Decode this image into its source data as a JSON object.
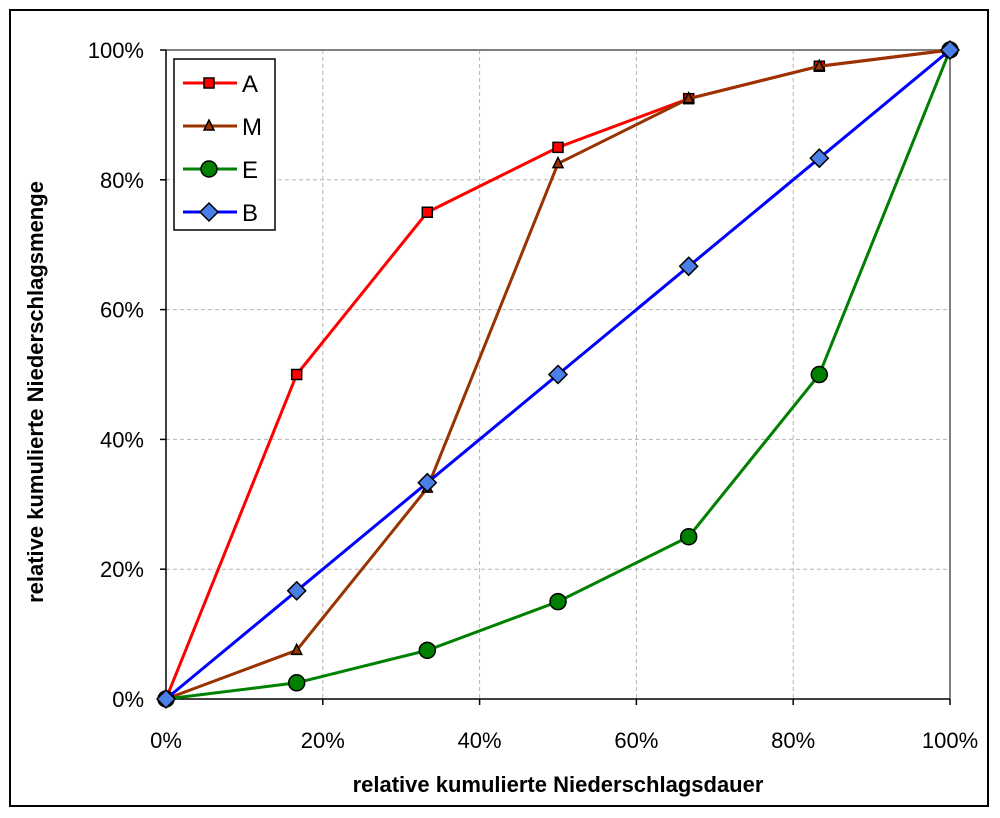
{
  "chart_data": {
    "type": "line",
    "title": "",
    "xlabel": "relative kumulierte Niederschlagsdauer",
    "ylabel": "relative kumulierte Niederschlagsmenge",
    "xlim": [
      0,
      100
    ],
    "ylim": [
      0,
      100
    ],
    "x_ticks": [
      "0%",
      "20%",
      "40%",
      "60%",
      "80%",
      "100%"
    ],
    "y_ticks": [
      "0%",
      "20%",
      "40%",
      "60%",
      "80%",
      "100%"
    ],
    "grid": true,
    "legend_position": "top-left",
    "x": [
      0,
      16.67,
      33.33,
      50,
      66.67,
      83.33,
      100
    ],
    "series": [
      {
        "name": "A",
        "color": "#ff0000",
        "marker": "square",
        "marker_fill": "#ff0000",
        "values": [
          0,
          50,
          75,
          85,
          92.5,
          97.5,
          100
        ]
      },
      {
        "name": "M",
        "color": "#993300",
        "marker": "triangle",
        "marker_fill": "#993300",
        "values": [
          0,
          7.5,
          32.5,
          82.5,
          92.5,
          97.5,
          100
        ]
      },
      {
        "name": "E",
        "color": "#008000",
        "marker": "circle",
        "marker_fill": "#008000",
        "values": [
          0,
          2.5,
          7.5,
          15,
          25,
          50,
          100
        ]
      },
      {
        "name": "B",
        "color": "#0000ff",
        "marker": "diamond",
        "marker_fill": "#4a7fe8",
        "values": [
          0,
          16.67,
          33.33,
          50,
          66.67,
          83.33,
          100
        ]
      }
    ]
  }
}
